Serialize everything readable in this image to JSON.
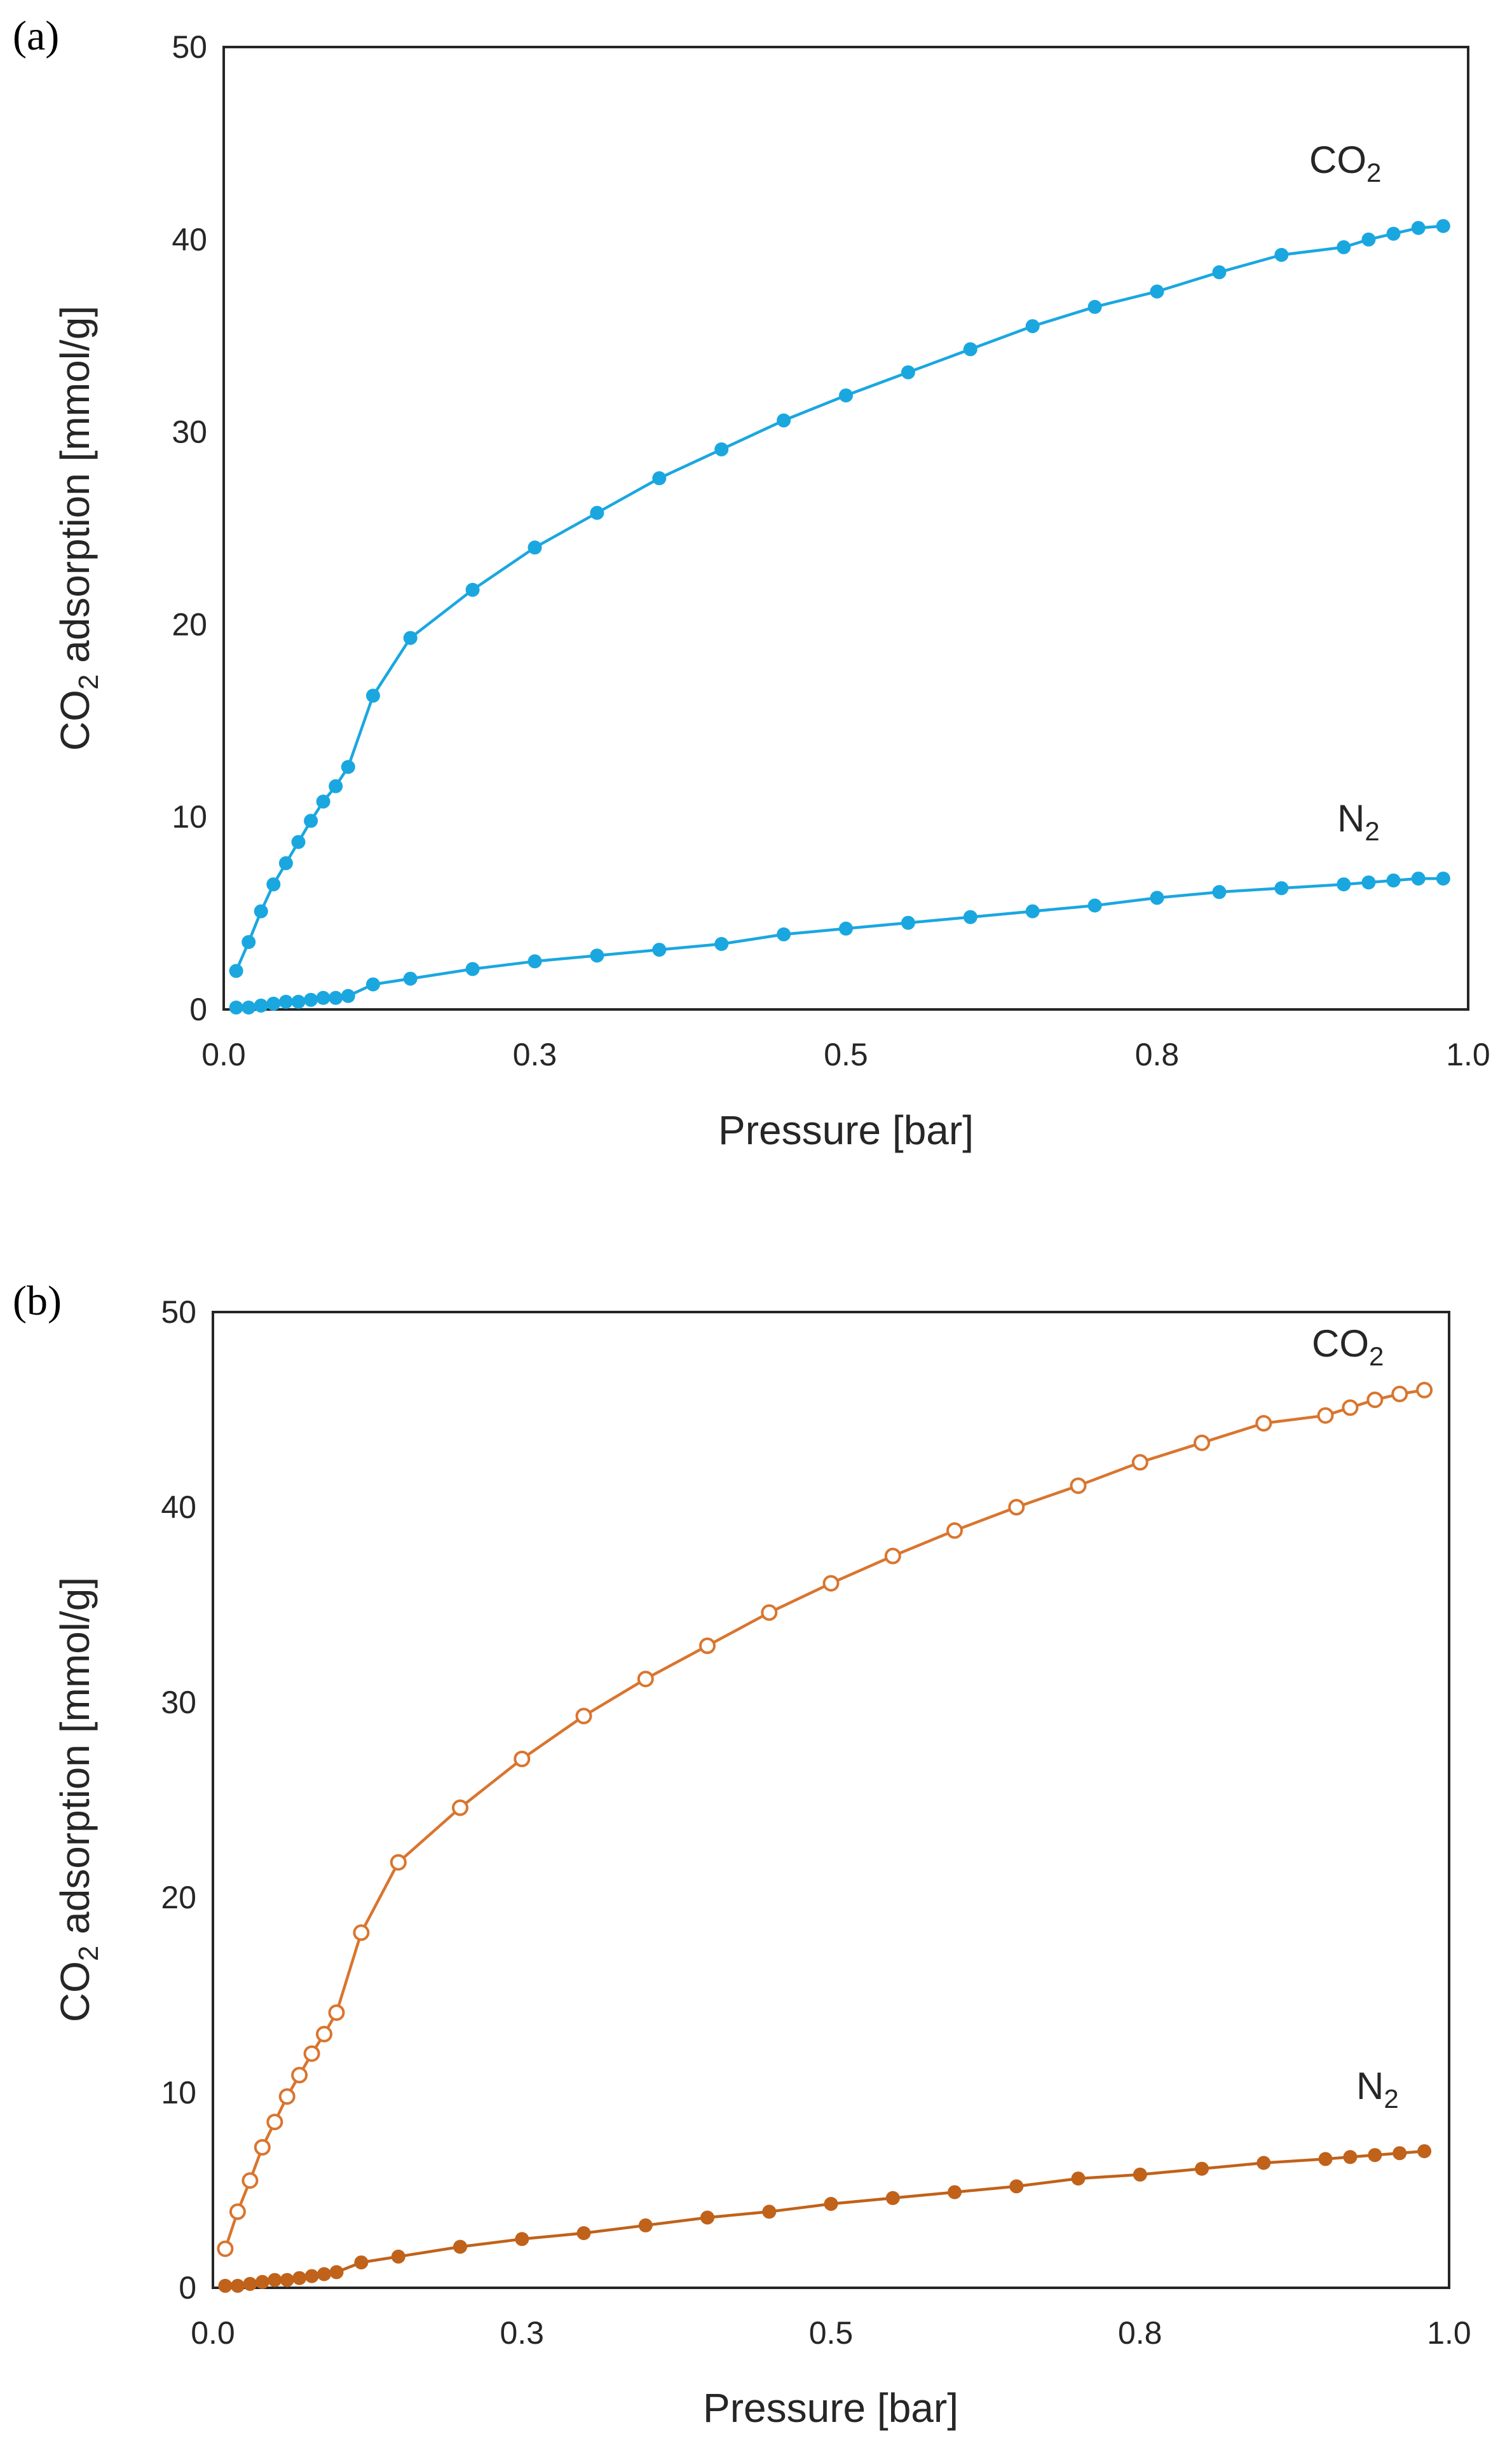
{
  "chart_data": [
    {
      "type": "line",
      "panel_label": "(a)",
      "xlabel": "Pressure [bar]",
      "ylabel": "CO2 adsorption [mmol/g]",
      "ylabel_main": "CO",
      "ylabel_sub": "2",
      "ylabel_rest": " adsorption [mmol/g]",
      "xlim": [
        0,
        1
      ],
      "ylim": [
        0,
        50
      ],
      "x_ticks": [
        0,
        0.25,
        0.5,
        0.75,
        1
      ],
      "x_tick_labels": [
        "0.0",
        "0.3",
        "0.5",
        "0.8",
        "1.0"
      ],
      "y_ticks": [
        0,
        10,
        20,
        30,
        40,
        50
      ],
      "y_tick_labels": [
        "0",
        "10",
        "20",
        "30",
        "40",
        "50"
      ],
      "series": [
        {
          "name": "CO2",
          "label_main": "CO",
          "label_sub": "2",
          "color": "#1AA7E0",
          "marker": "filled",
          "x": [
            0.01,
            0.02,
            0.03,
            0.04,
            0.05,
            0.06,
            0.07,
            0.08,
            0.09,
            0.1,
            0.12,
            0.15,
            0.2,
            0.25,
            0.3,
            0.35,
            0.4,
            0.45,
            0.5,
            0.55,
            0.6,
            0.65,
            0.7,
            0.75,
            0.8,
            0.85,
            0.9,
            0.92,
            0.94,
            0.96,
            0.98
          ],
          "y": [
            2.0,
            3.5,
            5.1,
            6.5,
            7.6,
            8.7,
            9.8,
            10.8,
            11.6,
            12.6,
            16.3,
            19.3,
            21.8,
            24.0,
            25.8,
            27.6,
            29.1,
            30.6,
            31.9,
            33.1,
            34.3,
            35.5,
            36.5,
            37.3,
            38.3,
            39.2,
            39.6,
            40.0,
            40.3,
            40.6,
            40.7
          ]
        },
        {
          "name": "N2",
          "label_main": "N",
          "label_sub": "2",
          "color": "#1AA7E0",
          "marker": "filled",
          "x": [
            0.01,
            0.02,
            0.03,
            0.04,
            0.05,
            0.06,
            0.07,
            0.08,
            0.09,
            0.1,
            0.12,
            0.15,
            0.2,
            0.25,
            0.3,
            0.35,
            0.4,
            0.45,
            0.5,
            0.55,
            0.6,
            0.65,
            0.7,
            0.75,
            0.8,
            0.85,
            0.9,
            0.92,
            0.94,
            0.96,
            0.98
          ],
          "y": [
            0.1,
            0.1,
            0.2,
            0.3,
            0.4,
            0.4,
            0.5,
            0.6,
            0.6,
            0.7,
            1.3,
            1.6,
            2.1,
            2.5,
            2.8,
            3.1,
            3.4,
            3.9,
            4.2,
            4.5,
            4.8,
            5.1,
            5.4,
            5.8,
            6.1,
            6.3,
            6.5,
            6.6,
            6.7,
            6.8,
            6.8
          ]
        }
      ]
    },
    {
      "type": "line",
      "panel_label": "(b)",
      "xlabel": "Pressure [bar]",
      "ylabel": "CO2 adsorption [mmol/g]",
      "ylabel_main": "CO",
      "ylabel_sub": "2",
      "ylabel_rest": " adsorption [mmol/g]",
      "xlim": [
        0,
        1
      ],
      "ylim": [
        0,
        50
      ],
      "x_ticks": [
        0,
        0.25,
        0.5,
        0.75,
        1
      ],
      "x_tick_labels": [
        "0.0",
        "0.3",
        "0.5",
        "0.8",
        "1.0"
      ],
      "y_ticks": [
        0,
        10,
        20,
        30,
        40,
        50
      ],
      "y_tick_labels": [
        "0",
        "10",
        "20",
        "30",
        "40",
        "50"
      ],
      "series": [
        {
          "name": "CO2",
          "label_main": "CO",
          "label_sub": "2",
          "color": "#D9752E",
          "marker": "open",
          "x": [
            0.01,
            0.02,
            0.03,
            0.04,
            0.05,
            0.06,
            0.07,
            0.08,
            0.09,
            0.1,
            0.12,
            0.15,
            0.2,
            0.25,
            0.3,
            0.35,
            0.4,
            0.45,
            0.5,
            0.55,
            0.6,
            0.65,
            0.7,
            0.75,
            0.8,
            0.85,
            0.9,
            0.92,
            0.94,
            0.96,
            0.98
          ],
          "y": [
            2.0,
            3.9,
            5.5,
            7.2,
            8.5,
            9.8,
            10.9,
            12.0,
            13.0,
            14.1,
            18.2,
            21.8,
            24.6,
            27.1,
            29.3,
            31.2,
            32.9,
            34.6,
            36.1,
            37.5,
            38.8,
            40.0,
            41.1,
            42.3,
            43.3,
            44.3,
            44.7,
            45.1,
            45.5,
            45.8,
            46.0
          ]
        },
        {
          "name": "N2",
          "label_main": "N",
          "label_sub": "2",
          "color": "#C0621A",
          "marker": "filled",
          "x": [
            0.01,
            0.02,
            0.03,
            0.04,
            0.05,
            0.06,
            0.07,
            0.08,
            0.09,
            0.1,
            0.12,
            0.15,
            0.2,
            0.25,
            0.3,
            0.35,
            0.4,
            0.45,
            0.5,
            0.55,
            0.6,
            0.65,
            0.7,
            0.75,
            0.8,
            0.85,
            0.9,
            0.92,
            0.94,
            0.96,
            0.98
          ],
          "y": [
            0.1,
            0.1,
            0.2,
            0.3,
            0.4,
            0.4,
            0.5,
            0.6,
            0.7,
            0.8,
            1.3,
            1.6,
            2.1,
            2.5,
            2.8,
            3.2,
            3.6,
            3.9,
            4.3,
            4.6,
            4.9,
            5.2,
            5.6,
            5.8,
            6.1,
            6.4,
            6.6,
            6.7,
            6.8,
            6.9,
            7.0
          ]
        }
      ]
    }
  ]
}
